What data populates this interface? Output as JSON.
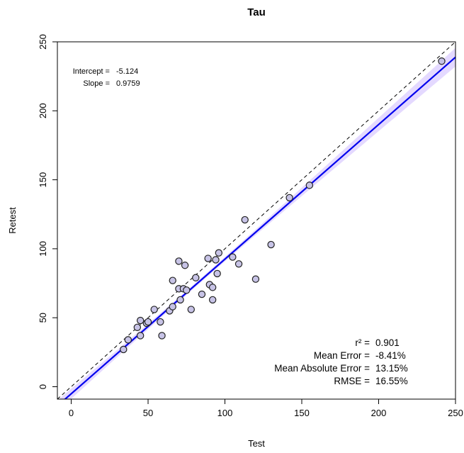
{
  "chart_data": {
    "type": "scatter",
    "title": "Tau",
    "xlabel": "Test",
    "ylabel": "Retest",
    "xlim": [
      -9,
      250
    ],
    "ylim": [
      -9,
      250
    ],
    "x_ticks": [
      0,
      50,
      100,
      150,
      200,
      250
    ],
    "y_ticks": [
      0,
      50,
      100,
      150,
      200,
      250
    ],
    "grid": false,
    "regression": {
      "intercept": -5.124,
      "slope": 0.9759,
      "color": "#0000ee",
      "band_color": "#ddd0ff"
    },
    "identity_line": {
      "slope": 1,
      "intercept": 0,
      "style": "dashed"
    },
    "stats_top": [
      {
        "label": "Intercept =",
        "value": "-5.124"
      },
      {
        "label": "Slope =",
        "value": "0.9759"
      }
    ],
    "stats_bottom": [
      {
        "label": "r² =",
        "value": "0.901"
      },
      {
        "label": "Mean Error =",
        "value": "-8.41%"
      },
      {
        "label": "Mean Absolute Error =",
        "value": "13.15%"
      },
      {
        "label": "RMSE =",
        "value": "16.55%"
      }
    ],
    "point_fill": "#c7c3e6",
    "points": [
      [
        34,
        27
      ],
      [
        37,
        34
      ],
      [
        43,
        43
      ],
      [
        45,
        48
      ],
      [
        45,
        37
      ],
      [
        49,
        46
      ],
      [
        50,
        47
      ],
      [
        54,
        56
      ],
      [
        58,
        47
      ],
      [
        59,
        37
      ],
      [
        64,
        55
      ],
      [
        66,
        77
      ],
      [
        66,
        58
      ],
      [
        70,
        91
      ],
      [
        70,
        71
      ],
      [
        71,
        63
      ],
      [
        73,
        71
      ],
      [
        74,
        88
      ],
      [
        75,
        70
      ],
      [
        78,
        56
      ],
      [
        81,
        79
      ],
      [
        85,
        67
      ],
      [
        89,
        93
      ],
      [
        90,
        74
      ],
      [
        92,
        63
      ],
      [
        92,
        72
      ],
      [
        94,
        92
      ],
      [
        95,
        82
      ],
      [
        96,
        97
      ],
      [
        105,
        94
      ],
      [
        109,
        89
      ],
      [
        113,
        121
      ],
      [
        120,
        78
      ],
      [
        130,
        103
      ],
      [
        142,
        137
      ],
      [
        155,
        146
      ],
      [
        241,
        236
      ]
    ]
  }
}
